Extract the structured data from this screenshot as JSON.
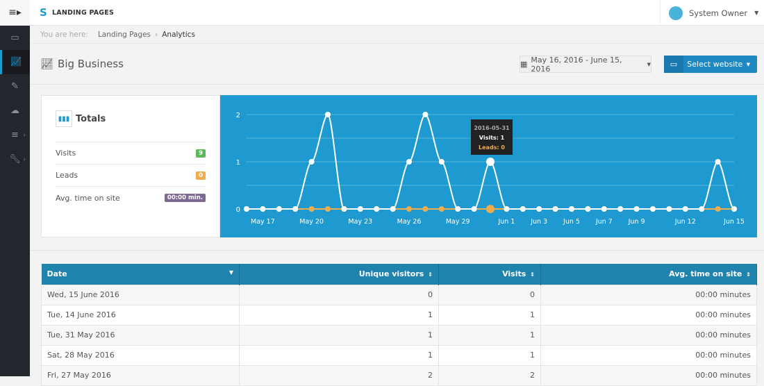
{
  "app": {
    "name": "LANDING PAGES",
    "user": "System Owner"
  },
  "sidebar": {
    "items": [
      {
        "icon": "laptop-icon"
      },
      {
        "icon": "line-chart-icon",
        "active": true
      },
      {
        "icon": "edit-icon"
      },
      {
        "icon": "cloud-icon"
      },
      {
        "icon": "sliders-icon"
      },
      {
        "icon": "wrench-icon"
      }
    ]
  },
  "breadcrumb": {
    "label": "You are here:",
    "items": [
      "Landing Pages",
      "Analytics"
    ]
  },
  "page": {
    "title": "Big Business",
    "date_range": "May 16, 2016 - June 15, 2016",
    "select_website": "Select website"
  },
  "totals": {
    "title": "Totals",
    "rows": [
      {
        "label": "Visits",
        "value": "9",
        "color": "#5cb85c"
      },
      {
        "label": "Leads",
        "value": "0",
        "color": "#f0ad4e"
      },
      {
        "label": "Avg. time on site",
        "value": "00:00 min.",
        "color": "#7f6a94"
      }
    ]
  },
  "tooltip": {
    "date": "2016-05-31",
    "visits": "Visits: 1",
    "leads": "Leads: 0"
  },
  "chart_data": {
    "type": "line",
    "x_start": "2016-05-16",
    "x_end": "2016-06-15",
    "xticks": [
      "May 17",
      "May 20",
      "May 23",
      "May 26",
      "May 29",
      "Jun 1",
      "Jun 3",
      "Jun 5",
      "Jun 7",
      "Jun 9",
      "Jun 12",
      "Jun 15"
    ],
    "yticks": [
      "0",
      "1",
      "2"
    ],
    "ylim": [
      0,
      2
    ],
    "grid": true,
    "series": [
      {
        "name": "Visits",
        "color": "#ffffff",
        "values": [
          0,
          0,
          0,
          0,
          1,
          2,
          0,
          0,
          0,
          0,
          1,
          2,
          1,
          0,
          0,
          1,
          0,
          0,
          0,
          0,
          0,
          0,
          0,
          0,
          0,
          0,
          0,
          0,
          0,
          1,
          0
        ]
      },
      {
        "name": "Leads",
        "color": "#f0ad4e",
        "values": [
          0,
          0,
          0,
          0,
          0,
          0,
          0,
          0,
          0,
          0,
          0,
          0,
          0,
          0,
          0,
          0,
          0,
          0,
          0,
          0,
          0,
          0,
          0,
          0,
          0,
          0,
          0,
          0,
          0,
          0,
          0
        ]
      }
    ]
  },
  "table": {
    "headers": [
      "Date",
      "Unique visitors",
      "Visits",
      "Avg. time on site"
    ],
    "rows": [
      [
        "Wed, 15 June 2016",
        "0",
        "0",
        "00:00 minutes"
      ],
      [
        "Tue, 14 June 2016",
        "1",
        "1",
        "00:00 minutes"
      ],
      [
        "Tue, 31 May 2016",
        "1",
        "1",
        "00:00 minutes"
      ],
      [
        "Sat, 28 May 2016",
        "1",
        "1",
        "00:00 minutes"
      ],
      [
        "Fri, 27 May 2016",
        "2",
        "2",
        "00:00 minutes"
      ]
    ]
  }
}
